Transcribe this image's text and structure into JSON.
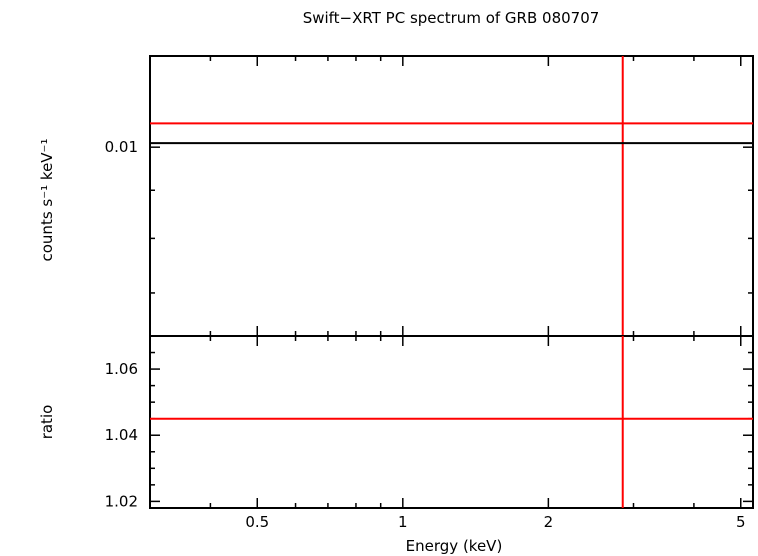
{
  "chart_data": {
    "type": "line",
    "title": "Swift−XRT PC spectrum of GRB 080707",
    "xlabel": "Energy (keV)",
    "x_scale": "log",
    "xlim": [
      0.3,
      5.3
    ],
    "x_ticks": [
      {
        "value": 0.5,
        "label": "0.5"
      },
      {
        "value": 1,
        "label": "1"
      },
      {
        "value": 2,
        "label": "2"
      },
      {
        "value": 5,
        "label": "5"
      }
    ],
    "panels": [
      {
        "name": "spectrum",
        "ylabel": "counts s⁻¹ keV⁻¹",
        "y_scale": "log",
        "ylim": [
          0.0063,
          0.0125
        ],
        "y_ticks": [
          {
            "value": 0.01,
            "label": "0.01"
          }
        ],
        "series": [
          {
            "role": "data",
            "color": "#ff0000",
            "y": 0.0106,
            "x_marker": 2.85
          },
          {
            "role": "model",
            "color": "#000000",
            "y": 0.0101
          }
        ]
      },
      {
        "name": "ratio",
        "ylabel": "ratio",
        "y_scale": "linear",
        "ylim": [
          1.018,
          1.07
        ],
        "y_ticks": [
          {
            "value": 1.02,
            "label": "1.02"
          },
          {
            "value": 1.04,
            "label": "1.04"
          },
          {
            "value": 1.06,
            "label": "1.06"
          }
        ],
        "series": [
          {
            "role": "ratio",
            "color": "#ff0000",
            "y": 1.045,
            "x_marker": 2.85
          }
        ]
      }
    ]
  }
}
